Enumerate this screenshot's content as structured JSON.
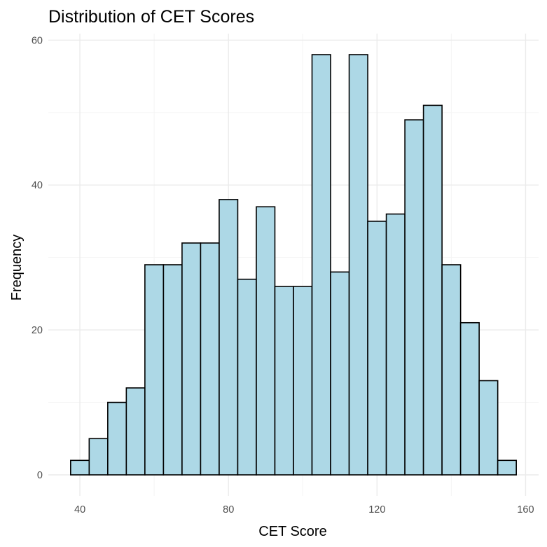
{
  "chart_data": {
    "type": "bar",
    "title": "Distribution of CET Scores",
    "xlabel": "CET Score",
    "ylabel": "Frequency",
    "bin_width": 5,
    "bins": [
      {
        "start": 37.5,
        "end": 42.5,
        "count": 2
      },
      {
        "start": 42.5,
        "end": 47.5,
        "count": 5
      },
      {
        "start": 47.5,
        "end": 52.5,
        "count": 10
      },
      {
        "start": 52.5,
        "end": 57.5,
        "count": 12
      },
      {
        "start": 57.5,
        "end": 62.5,
        "count": 29
      },
      {
        "start": 62.5,
        "end": 67.5,
        "count": 29
      },
      {
        "start": 67.5,
        "end": 72.5,
        "count": 32
      },
      {
        "start": 72.5,
        "end": 77.5,
        "count": 32
      },
      {
        "start": 77.5,
        "end": 82.5,
        "count": 38
      },
      {
        "start": 82.5,
        "end": 87.5,
        "count": 27
      },
      {
        "start": 87.5,
        "end": 92.5,
        "count": 37
      },
      {
        "start": 92.5,
        "end": 97.5,
        "count": 26
      },
      {
        "start": 97.5,
        "end": 102.5,
        "count": 26
      },
      {
        "start": 102.5,
        "end": 107.5,
        "count": 58
      },
      {
        "start": 107.5,
        "end": 112.5,
        "count": 28
      },
      {
        "start": 112.5,
        "end": 117.5,
        "count": 58
      },
      {
        "start": 117.5,
        "end": 122.5,
        "count": 35
      },
      {
        "start": 122.5,
        "end": 127.5,
        "count": 36
      },
      {
        "start": 127.5,
        "end": 132.5,
        "count": 49
      },
      {
        "start": 132.5,
        "end": 137.5,
        "count": 51
      },
      {
        "start": 137.5,
        "end": 142.5,
        "count": 29
      },
      {
        "start": 142.5,
        "end": 147.5,
        "count": 21
      },
      {
        "start": 147.5,
        "end": 152.5,
        "count": 13
      },
      {
        "start": 152.5,
        "end": 157.5,
        "count": 2
      }
    ],
    "xlim": [
      31.5,
      163.5
    ],
    "ylim": [
      -2.9,
      60.9
    ],
    "x_ticks": [
      40,
      80,
      120,
      160
    ],
    "y_ticks": [
      0,
      20,
      40,
      60
    ],
    "grid": true,
    "colors": {
      "bar_fill": "#ADD8E6",
      "bar_stroke": "#000000",
      "grid_major": "#EBEBEB",
      "grid_minor": "#F5F5F5",
      "tick_text": "#4D4D4D"
    }
  }
}
